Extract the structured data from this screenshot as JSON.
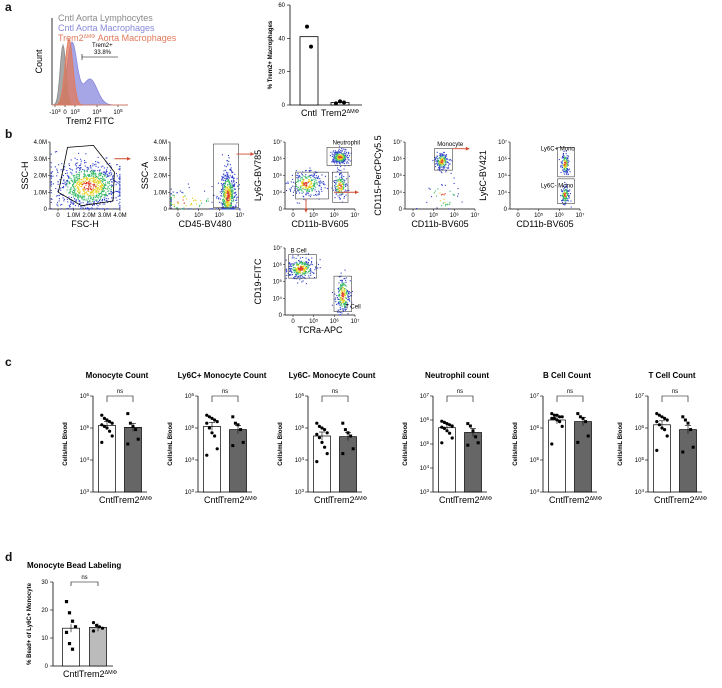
{
  "panel_labels": {
    "a": "a",
    "b": "b",
    "c": "c",
    "d": "d"
  },
  "colors": {
    "lymph": "#8a8a8a",
    "macro": "#8888dd",
    "trem": "#e2785a",
    "dark_bar": "#666666",
    "arrow": "#d04a2e",
    "density_blue": "#2e3fc9",
    "density_green": "#33b866",
    "density_yellow": "#e5d21f",
    "density_red": "#e23c2c"
  },
  "panel_a": {
    "hist": {
      "legend": [
        "Cntl Aorta Lymphocytes",
        "Cntl Aorta Macrophages",
        "Trem2",
        "ΔMΦ",
        "Aorta Macrophages"
      ],
      "ylabel": "Count",
      "xlabel": "Trem2 FITC",
      "xticks": [
        {
          "b": "-10",
          "e": "3"
        },
        {
          "b": "0",
          "e": ""
        },
        {
          "b": "10",
          "e": "3"
        },
        {
          "b": "10",
          "e": "4"
        },
        {
          "b": "10",
          "e": "5"
        }
      ],
      "gate": {
        "name": "Trem2+",
        "pct": "33.8%"
      }
    },
    "bar": {
      "ylabel": "% Trem2+ Macrophages",
      "ylim": [
        0,
        60
      ],
      "yticks": [
        "0",
        "20",
        "40",
        "60"
      ],
      "groups": [
        {
          "name": "Cntl",
          "suffix": "",
          "mean": 41,
          "points": [
            47,
            35
          ]
        },
        {
          "name": "Trem2",
          "suffix": "ΔMΦ",
          "mean": 1.5,
          "points": [
            1.0,
            2.2,
            1.5
          ]
        }
      ]
    }
  },
  "panel_b": {
    "plots": [
      {
        "ylabel": "SSC-H",
        "xlabel": "FSC-H",
        "yticks": [
          "0",
          "1.0M",
          "2.0M",
          "3.0M",
          "4.0M"
        ],
        "xticks": [
          "0",
          "1.0M",
          "2.0M",
          "3.0M",
          "4.0M"
        ],
        "gates": []
      },
      {
        "ylabel": "SSC-A",
        "xlabel": "CD45-BV480",
        "yticks": [
          "0",
          "1.0M",
          "2.0M",
          "3.0M",
          "4.0M"
        ],
        "xticks": [
          "0",
          "10⁵",
          "10⁶",
          "10⁷"
        ],
        "gates": []
      },
      {
        "ylabel": "Ly6G-BV785",
        "xlabel": "CD11b-BV605",
        "yticks": [
          "0",
          "10⁴",
          "10⁵",
          "10⁶",
          "10⁷"
        ],
        "xticks": [
          "0",
          "10⁵",
          "10⁶",
          "10⁷"
        ],
        "gates": [
          "Neutrophil"
        ]
      },
      {
        "ylabel": "CD115-PerCPCy5.5",
        "xlabel": "CD11b-BV605",
        "yticks": [
          "0",
          "10⁴",
          "10⁵",
          "10⁶",
          "10⁷"
        ],
        "xticks": [
          "0",
          "10⁵",
          "10⁶",
          "10⁷"
        ],
        "gates": [
          "Monocyte"
        ]
      },
      {
        "ylabel": "Ly6C-BV421",
        "xlabel": "CD11b-BV605",
        "yticks": [
          "0",
          "10⁴",
          "10⁵",
          "10⁶",
          "10⁷"
        ],
        "xticks": [
          "0",
          "10⁵",
          "10⁶",
          "10⁷"
        ],
        "gates": [
          "Ly6C+ Mono",
          "Ly6C- Mono"
        ]
      },
      {
        "ylabel": "CD19-FITC",
        "xlabel": "TCRa-APC",
        "yticks": [
          "0",
          "10⁴",
          "10⁵",
          "10⁶",
          "10⁷"
        ],
        "xticks": [
          "0",
          "10⁵",
          "10⁶",
          "10⁷"
        ],
        "gates": [
          "B Cell",
          "T Cell"
        ]
      }
    ]
  },
  "panel_c": {
    "ylabel": "Cells/mL Blood",
    "group_names": [
      "Cntl",
      "Trem2"
    ],
    "group_suffix": "ΔMΦ",
    "sig": "ns",
    "charts": [
      {
        "title": "Monocyte Count",
        "yticks": [
          {
            "b": "10",
            "e": "3"
          },
          {
            "b": "10",
            "e": "4"
          },
          {
            "b": "10",
            "e": "5"
          },
          {
            "b": "10",
            "e": "6"
          }
        ],
        "ylog": [
          3,
          6
        ],
        "means": [
          5.08,
          5.02
        ],
        "points": [
          [
            5.4,
            5.3,
            5.25,
            5.2,
            5.15,
            5.1,
            5.05,
            5.0,
            4.9,
            4.75,
            4.55
          ],
          [
            5.45,
            5.15,
            5.05,
            4.95,
            4.65,
            4.5
          ]
        ]
      },
      {
        "title": "Ly6C+ Monocyte Count",
        "yticks": [
          {
            "b": "10",
            "e": "3"
          },
          {
            "b": "10",
            "e": "4"
          },
          {
            "b": "10",
            "e": "5"
          },
          {
            "b": "10",
            "e": "6"
          }
        ],
        "ylog": [
          3,
          6
        ],
        "means": [
          5.05,
          4.95
        ],
        "points": [
          [
            5.4,
            5.35,
            5.3,
            5.25,
            5.2,
            5.15,
            5.0,
            4.85,
            4.75,
            4.35,
            4.15
          ],
          [
            5.35,
            5.15,
            5.1,
            4.95,
            4.55,
            4.45
          ]
        ]
      },
      {
        "title": "Ly6C- Monocyte Count",
        "yticks": [
          {
            "b": "10",
            "e": "3"
          },
          {
            "b": "10",
            "e": "4"
          },
          {
            "b": "10",
            "e": "5"
          },
          {
            "b": "10",
            "e": "6"
          }
        ],
        "ylog": [
          3,
          6
        ],
        "means": [
          4.75,
          4.73
        ],
        "points": [
          [
            5.15,
            5.05,
            5.0,
            4.95,
            4.85,
            4.8,
            4.7,
            4.55,
            4.4,
            4.2,
            3.95
          ],
          [
            5.15,
            4.95,
            4.85,
            4.75,
            4.35,
            4.2
          ]
        ]
      },
      {
        "title": "Neutrophil count",
        "yticks": [
          {
            "b": "10",
            "e": "3"
          },
          {
            "b": "10",
            "e": "4"
          },
          {
            "b": "10",
            "e": "5"
          },
          {
            "b": "10",
            "e": "6"
          },
          {
            "b": "10",
            "e": "7"
          }
        ],
        "ylog": [
          3,
          7
        ],
        "means": [
          5.68,
          5.48
        ],
        "points": [
          [
            5.95,
            5.9,
            5.85,
            5.8,
            5.75,
            5.7,
            5.65,
            5.55,
            5.45,
            5.25,
            5.05
          ],
          [
            5.85,
            5.75,
            5.55,
            5.3,
            5.05,
            4.95
          ]
        ]
      },
      {
        "title": "B Cell Count",
        "yticks": [
          {
            "b": "10",
            "e": "4"
          },
          {
            "b": "10",
            "e": "5"
          },
          {
            "b": "10",
            "e": "6"
          },
          {
            "b": "10",
            "e": "7"
          }
        ],
        "ylog": [
          4,
          7
        ],
        "means": [
          6.25,
          6.2
        ],
        "points": [
          [
            6.45,
            6.4,
            6.4,
            6.35,
            6.35,
            6.3,
            6.3,
            6.25,
            6.2,
            6.05,
            5.5
          ],
          [
            6.45,
            6.35,
            6.3,
            6.2,
            5.75,
            5.55
          ]
        ]
      },
      {
        "title": "T Cell Count",
        "yticks": [
          {
            "b": "10",
            "e": "4"
          },
          {
            "b": "10",
            "e": "5"
          },
          {
            "b": "10",
            "e": "6"
          },
          {
            "b": "10",
            "e": "7"
          }
        ],
        "ylog": [
          4,
          7
        ],
        "means": [
          6.1,
          5.95
        ],
        "points": [
          [
            6.45,
            6.4,
            6.35,
            6.3,
            6.25,
            6.2,
            6.1,
            6.0,
            5.95,
            5.75,
            5.3
          ],
          [
            6.35,
            6.25,
            6.15,
            5.95,
            5.4,
            5.25
          ]
        ]
      }
    ]
  },
  "panel_d": {
    "title": "Monocyte Bead Labeling",
    "ylabel": "% Bead+ of Ly6C+ Monocyte",
    "ylim": [
      0,
      30
    ],
    "yticks": [
      "0",
      "10",
      "20",
      "30"
    ],
    "sig": "ns",
    "groups": [
      {
        "name": "Cntl",
        "suffix": "",
        "mean": 13.5,
        "points": [
          23,
          19,
          16,
          14,
          12,
          8,
          6
        ]
      },
      {
        "name": "Trem2",
        "suffix": "ΔMΦ",
        "mean": 13.8,
        "points": [
          15.5,
          14.5,
          14,
          13.5,
          12.5
        ]
      }
    ]
  }
}
